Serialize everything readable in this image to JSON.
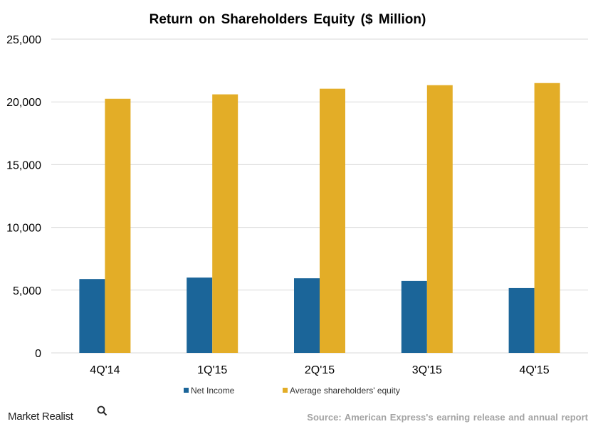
{
  "chart_data": {
    "type": "bar",
    "title": "Return on Shareholders  Equity  ($ Million)",
    "categories": [
      "4Q'14",
      "1Q'15",
      "2Q'15",
      "3Q'15",
      "4Q'15"
    ],
    "series": [
      {
        "name": "Net Income",
        "color": "#1b6599",
        "values": [
          5885,
          5999,
          5944,
          5732,
          5163
        ]
      },
      {
        "name": "Average shareholders' equity",
        "color": "#e3ad27",
        "values": [
          20250,
          20600,
          21050,
          21330,
          21500
        ]
      }
    ],
    "ylim": [
      0,
      25000
    ],
    "yticks": [
      0,
      5000,
      10000,
      15000,
      20000,
      25000
    ],
    "ytick_labels": [
      "0",
      "5,000",
      "10,000",
      "15,000",
      "20,000",
      "25,000"
    ],
    "grid": true,
    "legend_position": "bottom"
  },
  "footer": {
    "brand": "Market Realist",
    "source": "Source: American  Express's earning release and annual report"
  },
  "colors": {
    "grid": "#d9d9d9",
    "source_text": "#a3a3a3"
  },
  "icons": {
    "brand": "magnifier-icon"
  }
}
